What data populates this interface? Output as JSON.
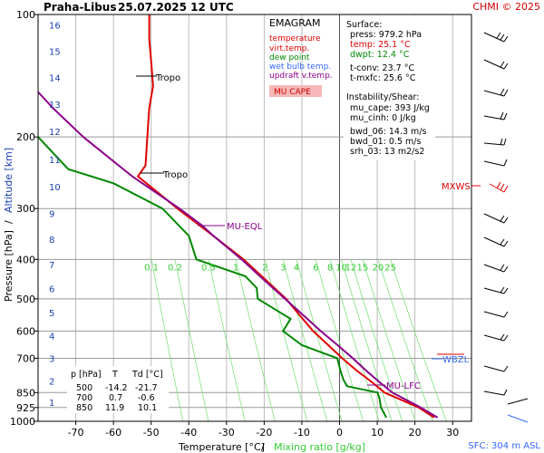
{
  "header": {
    "station": "Praha-Libus",
    "datetime": "25.07.2025 12 UTC",
    "credit": "CHMI © 2025"
  },
  "legend": {
    "title": "EMAGRAM",
    "items": [
      {
        "label": "temperature",
        "color": "#e00000"
      },
      {
        "label": "virt.temp.",
        "color": "#e00000"
      },
      {
        "label": "dew point",
        "color": "#008800"
      },
      {
        "label": "wet bulb temp.",
        "color": "#3366ff"
      },
      {
        "label": "updraft v.temp.",
        "color": "#8a008a"
      }
    ],
    "mu_cape": "MU CAPE",
    "mu_cape_color": "#f6b8b8"
  },
  "info": {
    "surface_title": "Surface:",
    "press": "press: 979.2 hPa",
    "temp": "temp: 25.1 °C",
    "dwpt": "dwpt: 12.4 °C",
    "tconv": "t-conv: 23.7 °C",
    "tmxfc": "t-mxfc: 25.6 °C",
    "instab_title": "Instability/Shear:",
    "mu_cape": "mu_cape: 393 J/kg",
    "mu_cinh": "mu_cinh: 0 J/kg",
    "bwd06": "bwd_06: 14.3 m/s",
    "bwd01": "bwd_01: 0.5 m/s",
    "srh03": "srh_03: 13 m2/s2"
  },
  "table": {
    "headers": [
      "p [hPa]",
      "T",
      "Td [°C]"
    ],
    "rows": [
      [
        "500",
        "-14.2",
        "-21.7"
      ],
      [
        "700",
        "0.7",
        "-0.6"
      ],
      [
        "850",
        "11.9",
        "10.1"
      ]
    ]
  },
  "labels": {
    "tropo": "Tropo",
    "mu_eql": "MU-EQL",
    "mu_lfc": "MU-LFC",
    "wbzl": "WBZL",
    "mxws": "MXWS",
    "sfc": "SFC: 304 m ASL"
  },
  "chart_data": {
    "type": "line",
    "title": "EMAGRAM",
    "xlabel": "Temperature [°C]",
    "xlabel_sep": "/",
    "xlabel2": "Mixing ratio [g/kg]",
    "ylabel": "Pressure [hPa]",
    "ylabel_sep": "/",
    "ylabel2": "Altitude [km]",
    "xlim": [
      -80,
      35
    ],
    "ylim": [
      1000,
      100
    ],
    "y_scale": "log",
    "x_ticks": [
      -70,
      -60,
      -50,
      -40,
      -30,
      -20,
      -10,
      0,
      10,
      20,
      30
    ],
    "y_ticks": [
      100,
      200,
      300,
      400,
      500,
      600,
      700,
      850,
      925,
      1000
    ],
    "y_km_ticks": [
      {
        "km": "16",
        "p": 106
      },
      {
        "km": "15",
        "p": 123
      },
      {
        "km": "14",
        "p": 143
      },
      {
        "km": "13",
        "p": 166
      },
      {
        "km": "12",
        "p": 194
      },
      {
        "km": "11",
        "p": 227
      },
      {
        "km": "10",
        "p": 265
      },
      {
        "km": "9",
        "p": 308
      },
      {
        "km": "8",
        "p": 357
      },
      {
        "km": "7",
        "p": 412
      },
      {
        "km": "6",
        "p": 472
      },
      {
        "km": "5",
        "p": 540
      },
      {
        "km": "4",
        "p": 616
      },
      {
        "km": "3",
        "p": 701
      },
      {
        "km": "2",
        "p": 795
      },
      {
        "km": "1",
        "p": 899
      }
    ],
    "mixing_ratio_labels": [
      "0.1",
      "0.2",
      "0.5",
      "1",
      "2",
      "3",
      "4",
      "6",
      "8",
      "10",
      "12",
      "15",
      "20",
      "25"
    ],
    "mixing_ratio_values": [
      0.1,
      0.2,
      0.5,
      1,
      2,
      3,
      4,
      6,
      8,
      10,
      12,
      15,
      20,
      25
    ],
    "series": [
      {
        "name": "temperature",
        "color": "#e00000",
        "points": [
          [
            979,
            25.1
          ],
          [
            925,
            21.0
          ],
          [
            850,
            11.9
          ],
          [
            800,
            8.5
          ],
          [
            750,
            4.5
          ],
          [
            700,
            0.7
          ],
          [
            650,
            -3.0
          ],
          [
            600,
            -7.0
          ],
          [
            550,
            -10.5
          ],
          [
            500,
            -14.2
          ],
          [
            450,
            -19.5
          ],
          [
            400,
            -25.5
          ],
          [
            350,
            -33.5
          ],
          [
            300,
            -43.0
          ],
          [
            250,
            -53.5
          ],
          [
            235,
            -51.5
          ],
          [
            200,
            -51.0
          ],
          [
            170,
            -50.5
          ],
          [
            150,
            -49.5
          ],
          [
            130,
            -50.0
          ],
          [
            115,
            -50.5
          ],
          [
            100,
            -50.5
          ]
        ]
      },
      {
        "name": "dew point",
        "color": "#008800",
        "points": [
          [
            979,
            12.4
          ],
          [
            925,
            11.0
          ],
          [
            880,
            10.6
          ],
          [
            850,
            10.1
          ],
          [
            820,
            2.0
          ],
          [
            790,
            1.0
          ],
          [
            750,
            0.2
          ],
          [
            700,
            -0.6
          ],
          [
            650,
            -10.0
          ],
          [
            600,
            -15.0
          ],
          [
            560,
            -13.0
          ],
          [
            500,
            -21.7
          ],
          [
            470,
            -22.0
          ],
          [
            440,
            -25.0
          ],
          [
            400,
            -38.0
          ],
          [
            350,
            -40.0
          ],
          [
            300,
            -47.0
          ],
          [
            260,
            -60.0
          ],
          [
            240,
            -72.0
          ],
          [
            200,
            -80.0
          ]
        ]
      },
      {
        "name": "updraft v.temp.",
        "color": "#8a008a",
        "points": [
          [
            979,
            26.0
          ],
          [
            925,
            21.5
          ],
          [
            850,
            14.0
          ],
          [
            800,
            10.5
          ],
          [
            750,
            7.0
          ],
          [
            700,
            3.5
          ],
          [
            650,
            -0.5
          ],
          [
            600,
            -5.0
          ],
          [
            550,
            -9.5
          ],
          [
            500,
            -14.5
          ],
          [
            450,
            -20.0
          ],
          [
            400,
            -26.0
          ],
          [
            350,
            -33.5
          ],
          [
            330,
            -36.5
          ],
          [
            300,
            -42.5
          ],
          [
            250,
            -55.0
          ],
          [
            200,
            -68.0
          ],
          [
            170,
            -76.0
          ],
          [
            155,
            -80.0
          ]
        ]
      }
    ]
  }
}
